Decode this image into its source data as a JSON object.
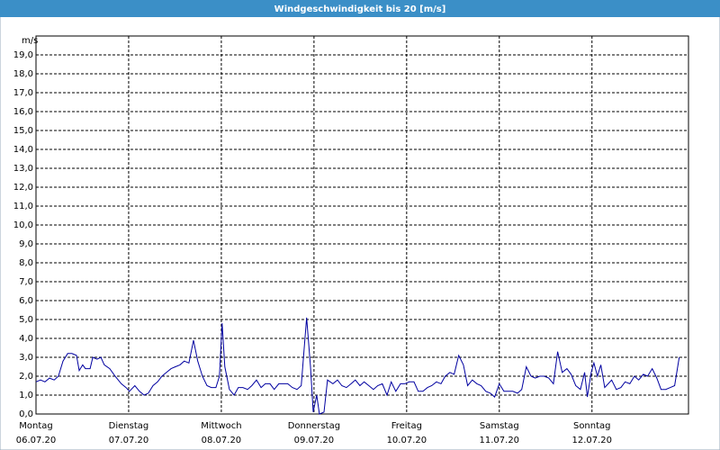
{
  "chart_data": {
    "type": "line",
    "title": "Windgeschwindigkeit bis 20 [m/s]",
    "y_label": "m/s",
    "xlim": [
      0,
      169
    ],
    "xticks": [
      {
        "value": 0,
        "label": "Montag",
        "sublabel": "06.07.20"
      },
      {
        "value": 24,
        "label": "Dienstag",
        "sublabel": "07.07.20"
      },
      {
        "value": 48,
        "label": "Mittwoch",
        "sublabel": "08.07.20"
      },
      {
        "value": 72,
        "label": "Donnerstag",
        "sublabel": "09.07.20"
      },
      {
        "value": 96,
        "label": "Freitag",
        "sublabel": "10.07.20"
      },
      {
        "value": 120,
        "label": "Samstag",
        "sublabel": "11.07.20"
      },
      {
        "value": 144,
        "label": "Sonntag",
        "sublabel": "12.07.20"
      }
    ],
    "ylim": [
      0,
      20
    ],
    "yticks": [
      {
        "value": 0,
        "label": "0,0"
      },
      {
        "value": 1,
        "label": "1,0"
      },
      {
        "value": 2,
        "label": "2,0"
      },
      {
        "value": 3,
        "label": "3,0"
      },
      {
        "value": 4,
        "label": "4,0"
      },
      {
        "value": 5,
        "label": "5,0"
      },
      {
        "value": 6,
        "label": "6,0"
      },
      {
        "value": 7,
        "label": "7,0"
      },
      {
        "value": 8,
        "label": "8,0"
      },
      {
        "value": 9,
        "label": "9,0"
      },
      {
        "value": 10,
        "label": "10,0"
      },
      {
        "value": 11,
        "label": "11,0"
      },
      {
        "value": 12,
        "label": "12,0"
      },
      {
        "value": 13,
        "label": "13,0"
      },
      {
        "value": 14,
        "label": "14,0"
      },
      {
        "value": 15,
        "label": "15,0"
      },
      {
        "value": 16,
        "label": "16,0"
      },
      {
        "value": 17,
        "label": "17,0"
      },
      {
        "value": 18,
        "label": "18,0"
      },
      {
        "value": 19,
        "label": "19,0"
      }
    ],
    "grid": true,
    "color": "#0000a0",
    "x": [
      0,
      1.2,
      2.3,
      3.5,
      4.7,
      5.8,
      7.0,
      8.2,
      9.3,
      10.5,
      11.2,
      12.1,
      12.8,
      14.0,
      14.7,
      15.8,
      16.8,
      17.7,
      19.1,
      20.5,
      22.1,
      23.3,
      24.2,
      25.6,
      26.8,
      28.0,
      29.1,
      30.3,
      31.5,
      32.6,
      33.8,
      35.0,
      36.1,
      37.3,
      38.4,
      39.6,
      40.8,
      41.9,
      43.1,
      44.3,
      45.4,
      46.6,
      47.5,
      48.2,
      48.9,
      50.1,
      51.3,
      52.4,
      53.6,
      54.8,
      55.9,
      57.1,
      58.3,
      59.4,
      60.6,
      61.7,
      62.9,
      64.1,
      65.2,
      66.4,
      67.6,
      68.7,
      70.1,
      71.1,
      71.8,
      72.7,
      73.4,
      74.6,
      75.5,
      76.9,
      78.1,
      79.2,
      80.4,
      81.6,
      82.7,
      83.9,
      85.0,
      86.2,
      87.4,
      88.5,
      89.7,
      90.9,
      92.0,
      93.2,
      94.4,
      95.5,
      96.7,
      97.9,
      99.0,
      100.2,
      101.4,
      102.5,
      103.7,
      104.9,
      106.0,
      107.2,
      108.3,
      109.5,
      110.7,
      111.8,
      113.0,
      114.2,
      115.3,
      116.5,
      117.7,
      118.8,
      120.0,
      121.2,
      122.3,
      123.5,
      124.7,
      125.8,
      127.0,
      128.2,
      129.3,
      130.5,
      131.6,
      132.8,
      134.0,
      135.1,
      136.3,
      137.5,
      138.6,
      139.8,
      141.0,
      142.1,
      142.8,
      143.8,
      144.5,
      145.4,
      146.3,
      147.3,
      148.2,
      149.1,
      150.3,
      151.5,
      152.6,
      153.8,
      155.0,
      156.1,
      157.3,
      158.4,
      159.6,
      160.8,
      161.9,
      163.1,
      164.3,
      165.4,
      166.6
    ],
    "values": [
      1.7,
      1.8,
      1.7,
      1.9,
      1.8,
      2.0,
      2.8,
      3.2,
      3.2,
      3.1,
      2.3,
      2.6,
      2.4,
      2.4,
      3.0,
      2.9,
      3.0,
      2.6,
      2.4,
      2.0,
      1.6,
      1.4,
      1.2,
      1.5,
      1.2,
      1.0,
      1.1,
      1.5,
      1.7,
      2.0,
      2.2,
      2.4,
      2.5,
      2.6,
      2.8,
      2.7,
      3.9,
      2.8,
      2.0,
      1.5,
      1.4,
      1.4,
      2.0,
      4.8,
      2.5,
      1.3,
      1.0,
      1.4,
      1.4,
      1.3,
      1.5,
      1.8,
      1.4,
      1.6,
      1.6,
      1.3,
      1.6,
      1.6,
      1.6,
      1.4,
      1.3,
      1.5,
      5.1,
      2.5,
      0.1,
      1.0,
      0.0,
      0.1,
      1.8,
      1.6,
      1.8,
      1.5,
      1.4,
      1.6,
      1.8,
      1.5,
      1.7,
      1.5,
      1.3,
      1.5,
      1.6,
      1.0,
      1.7,
      1.2,
      1.6,
      1.6,
      1.7,
      1.7,
      1.2,
      1.2,
      1.4,
      1.5,
      1.7,
      1.6,
      2.0,
      2.2,
      2.1,
      3.1,
      2.6,
      1.5,
      1.8,
      1.6,
      1.5,
      1.2,
      1.1,
      0.9,
      1.6,
      1.2,
      1.2,
      1.2,
      1.1,
      1.3,
      2.5,
      2.0,
      1.9,
      2.0,
      2.0,
      1.9,
      1.6,
      3.3,
      2.2,
      2.4,
      2.1,
      1.5,
      1.3,
      2.2,
      0.9,
      2.2,
      2.7,
      2.0,
      2.6,
      1.4,
      1.6,
      1.8,
      1.3,
      1.4,
      1.7,
      1.6,
      2.0,
      1.8,
      2.1,
      2.0,
      2.4,
      1.9,
      1.3,
      1.3,
      1.4,
      1.5,
      3.0
    ]
  }
}
